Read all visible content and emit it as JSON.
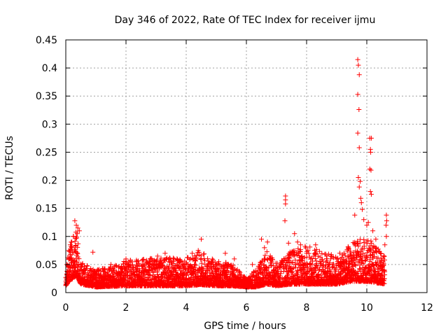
{
  "chart_data": {
    "type": "scatter",
    "title": "Day 346 of 2022, Rate Of TEC Index for receiver ijmu",
    "xlabel": "GPS time / hours",
    "ylabel": "ROTI / TECUs",
    "xlim": [
      0,
      12
    ],
    "ylim": [
      0,
      0.45
    ],
    "xticks": [
      0,
      2,
      4,
      6,
      8,
      10,
      12
    ],
    "yticks": [
      0,
      0.05,
      0.1,
      0.15,
      0.2,
      0.25,
      0.3,
      0.35,
      0.4,
      0.45
    ],
    "xtick_labels": [
      "0",
      "2",
      "4",
      "6",
      "8",
      "10",
      "12"
    ],
    "ytick_labels": [
      "0",
      "0.05",
      "0.1",
      "0.15",
      "0.2",
      "0.25",
      "0.3",
      "0.35",
      "0.4",
      "0.45"
    ],
    "grid": true,
    "marker": "+",
    "color": "#ff0000",
    "series": [
      {
        "name": "ROTI",
        "profile": [
          {
            "t": 0.0,
            "base": 0.012,
            "spread": 0.025
          },
          {
            "t": 0.1,
            "base": 0.02,
            "spread": 0.06
          },
          {
            "t": 0.35,
            "base": 0.03,
            "spread": 0.09
          },
          {
            "t": 0.5,
            "base": 0.015,
            "spread": 0.04
          },
          {
            "t": 1.0,
            "base": 0.01,
            "spread": 0.03
          },
          {
            "t": 2.0,
            "base": 0.012,
            "spread": 0.045
          },
          {
            "t": 3.0,
            "base": 0.012,
            "spread": 0.05
          },
          {
            "t": 4.0,
            "base": 0.012,
            "spread": 0.05
          },
          {
            "t": 4.5,
            "base": 0.014,
            "spread": 0.06
          },
          {
            "t": 5.0,
            "base": 0.012,
            "spread": 0.045
          },
          {
            "t": 5.5,
            "base": 0.012,
            "spread": 0.04
          },
          {
            "t": 6.0,
            "base": 0.01,
            "spread": 0.015
          },
          {
            "t": 6.3,
            "base": 0.01,
            "spread": 0.03
          },
          {
            "t": 6.7,
            "base": 0.015,
            "spread": 0.06
          },
          {
            "t": 7.0,
            "base": 0.012,
            "spread": 0.04
          },
          {
            "t": 7.5,
            "base": 0.015,
            "spread": 0.06
          },
          {
            "t": 8.0,
            "base": 0.015,
            "spread": 0.07
          },
          {
            "t": 9.0,
            "base": 0.015,
            "spread": 0.05
          },
          {
            "t": 9.5,
            "base": 0.02,
            "spread": 0.07
          },
          {
            "t": 10.0,
            "base": 0.02,
            "spread": 0.08
          },
          {
            "t": 10.6,
            "base": 0.015,
            "spread": 0.05
          }
        ],
        "spikes": [
          [
            0.3,
            0.128
          ],
          [
            0.35,
            0.12
          ],
          [
            0.4,
            0.115
          ],
          [
            0.45,
            0.11
          ],
          [
            0.38,
            0.105
          ],
          [
            0.25,
            0.1
          ],
          [
            0.2,
            0.09
          ],
          [
            0.15,
            0.085
          ],
          [
            0.1,
            0.075
          ],
          [
            0.9,
            0.072
          ],
          [
            1.5,
            0.05
          ],
          [
            2.0,
            0.06
          ],
          [
            2.2,
            0.055
          ],
          [
            2.8,
            0.06
          ],
          [
            3.05,
            0.065
          ],
          [
            3.3,
            0.07
          ],
          [
            3.6,
            0.06
          ],
          [
            3.9,
            0.05
          ],
          [
            4.2,
            0.07
          ],
          [
            4.5,
            0.095
          ],
          [
            4.4,
            0.075
          ],
          [
            5.3,
            0.07
          ],
          [
            5.6,
            0.06
          ],
          [
            6.2,
            0.05
          ],
          [
            6.5,
            0.095
          ],
          [
            6.6,
            0.08
          ],
          [
            6.7,
            0.09
          ],
          [
            7.3,
            0.172
          ],
          [
            7.3,
            0.165
          ],
          [
            7.3,
            0.158
          ],
          [
            7.28,
            0.128
          ],
          [
            7.4,
            0.088
          ],
          [
            7.6,
            0.105
          ],
          [
            7.7,
            0.09
          ],
          [
            7.8,
            0.085
          ],
          [
            8.0,
            0.07
          ],
          [
            8.3,
            0.085
          ],
          [
            8.8,
            0.06
          ],
          [
            9.2,
            0.055
          ],
          [
            9.5,
            0.06
          ],
          [
            9.7,
            0.415
          ],
          [
            9.72,
            0.405
          ],
          [
            9.75,
            0.388
          ],
          [
            9.7,
            0.353
          ],
          [
            9.74,
            0.326
          ],
          [
            9.7,
            0.284
          ],
          [
            9.75,
            0.258
          ],
          [
            9.72,
            0.205
          ],
          [
            9.78,
            0.198
          ],
          [
            9.75,
            0.188
          ],
          [
            9.8,
            0.168
          ],
          [
            9.82,
            0.16
          ],
          [
            9.85,
            0.148
          ],
          [
            9.6,
            0.138
          ],
          [
            10.1,
            0.275
          ],
          [
            10.15,
            0.275
          ],
          [
            10.12,
            0.255
          ],
          [
            10.13,
            0.25
          ],
          [
            10.1,
            0.22
          ],
          [
            10.14,
            0.218
          ],
          [
            10.12,
            0.18
          ],
          [
            10.15,
            0.175
          ],
          [
            9.9,
            0.13
          ],
          [
            10.0,
            0.12
          ],
          [
            10.05,
            0.125
          ],
          [
            10.2,
            0.11
          ],
          [
            10.3,
            0.095
          ],
          [
            10.45,
            0.07
          ],
          [
            10.65,
            0.138
          ],
          [
            10.66,
            0.128
          ],
          [
            10.64,
            0.12
          ],
          [
            10.65,
            0.1
          ],
          [
            10.6,
            0.085
          ]
        ]
      }
    ]
  }
}
